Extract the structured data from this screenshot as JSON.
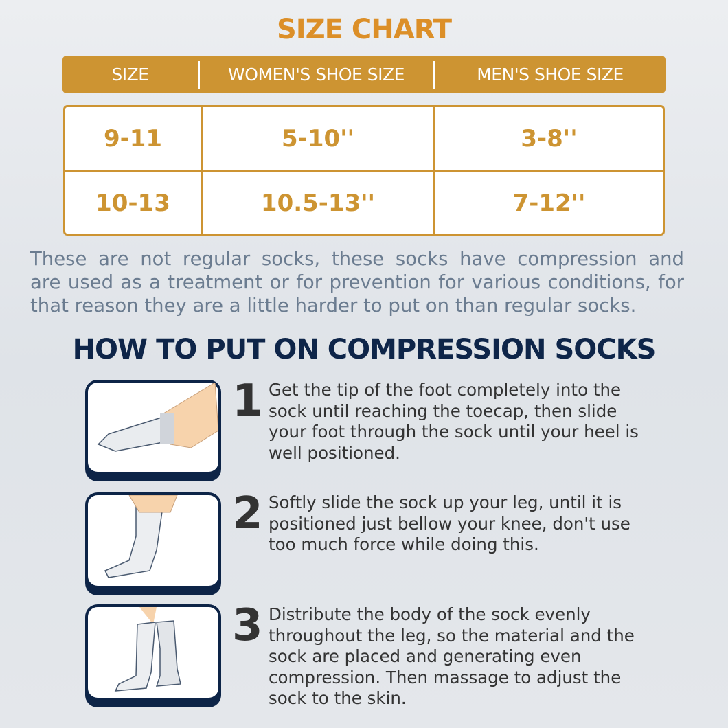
{
  "colors": {
    "accent": "#cd9432",
    "navy": "#0d2447",
    "paragraph": "#6b7c90"
  },
  "title": "SIZE CHART",
  "table": {
    "headers": [
      "SIZE",
      "WOMEN'S SHOE SIZE",
      "MEN'S SHOE SIZE"
    ],
    "rows": [
      [
        "9-11",
        "5-10''",
        "3-8''"
      ],
      [
        "10-13",
        "10.5-13''",
        "7-12''"
      ]
    ]
  },
  "paragraph": [
    "These are not regular socks, these socks have compression and",
    "are used as a treatment or for prevention for  various conditions, for",
    "that reason they are a little harder to put on than regular socks."
  ],
  "howto_title": "HOW TO PUT ON COMPRESSION SOCKS",
  "steps": [
    {
      "number": "1",
      "text": "Get the tip of the foot completely into the sock until reaching the toecap, then slide your foot through the sock until your heel is well positioned.",
      "icon": "foot-into-sock-illustration"
    },
    {
      "number": "2",
      "text": "Softly slide the sock up your leg, until it is positioned just bellow your knee, don't use too much force while doing this.",
      "icon": "slide-sock-up-illustration"
    },
    {
      "number": "3",
      "text": "Distribute the body of the sock evenly throughout the leg, so the material and the sock are placed and generating even compression. Then massage to adjust the sock to the skin.",
      "icon": "legs-with-socks-illustration"
    }
  ]
}
